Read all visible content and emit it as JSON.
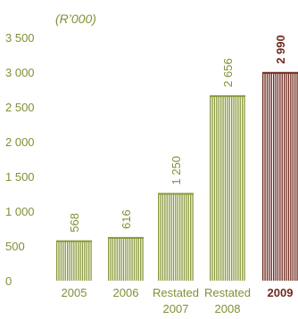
{
  "chart_data": {
    "type": "bar",
    "unit_label": "(R’000)",
    "categories": [
      {
        "line1": "2005",
        "line2": ""
      },
      {
        "line1": "2006",
        "line2": ""
      },
      {
        "line1": "Restated",
        "line2": "2007"
      },
      {
        "line1": "Restated",
        "line2": "2008"
      },
      {
        "line1": "2009",
        "line2": ""
      }
    ],
    "values": [
      568,
      616,
      1250,
      2656,
      2990
    ],
    "value_labels": [
      "568",
      "616",
      "1 250",
      "2 656",
      "2 990"
    ],
    "highlight_index": 4,
    "ylim": [
      0,
      3500
    ],
    "yticks": [
      {
        "value": 0,
        "label": "0"
      },
      {
        "value": 500,
        "label": "500"
      },
      {
        "value": 1000,
        "label": "1 000"
      },
      {
        "value": 1500,
        "label": "1 500"
      },
      {
        "value": 2000,
        "label": "2 000"
      },
      {
        "value": 2500,
        "label": "2 500"
      },
      {
        "value": 3000,
        "label": "3 000"
      },
      {
        "value": 3500,
        "label": "3 500"
      }
    ],
    "grid": false,
    "colors": {
      "bar": "#8a9a3c",
      "highlight": "#6e2a1e",
      "text": "#7f9136",
      "highlight_text": "#6e2a1e",
      "unit_text": "#7f9136"
    }
  }
}
